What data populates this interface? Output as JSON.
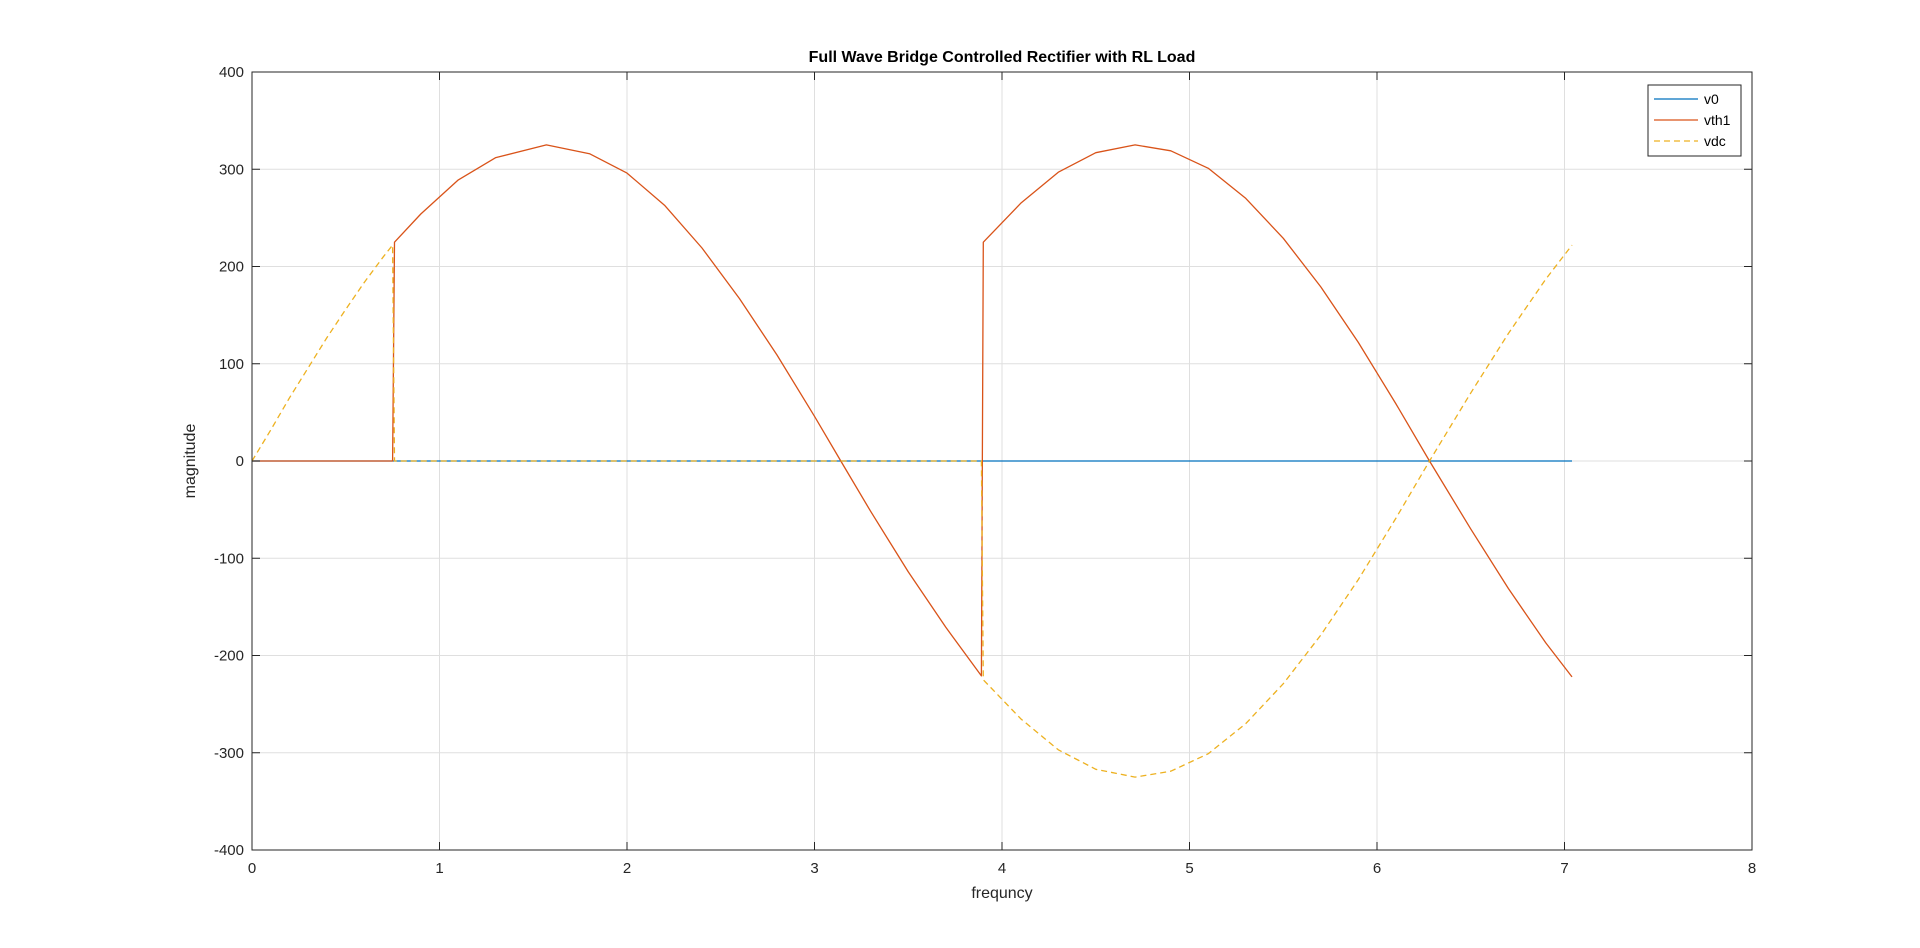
{
  "figure": {
    "background": "#ffffff"
  },
  "chart_data": {
    "type": "line",
    "title": "Full Wave Bridge Controlled Rectifier with RL Load",
    "xlabel": "frequncy",
    "ylabel": "magnitude",
    "xlim": [
      0,
      8
    ],
    "ylim": [
      -400,
      400
    ],
    "xticks": [
      0,
      1,
      2,
      3,
      4,
      5,
      6,
      7,
      8
    ],
    "yticks": [
      -400,
      -300,
      -200,
      -100,
      0,
      100,
      200,
      300,
      400
    ],
    "xtick_labels": [
      "0",
      "1",
      "2",
      "3",
      "4",
      "5",
      "6",
      "7",
      "8"
    ],
    "ytick_labels": [
      "-400",
      "-300",
      "-200",
      "-100",
      "0",
      "100",
      "200",
      "300",
      "400"
    ],
    "grid": true,
    "legend": {
      "placement": "top-right",
      "entries": [
        "v0",
        "vth1",
        "vdc"
      ]
    },
    "series": [
      {
        "name": "v0",
        "color": "#0072bd",
        "style": "solid",
        "x": [
          0,
          0.75,
          0.76,
          3.9,
          7.04
        ],
        "y": [
          0,
          0,
          0,
          0,
          0
        ]
      },
      {
        "name": "vth1",
        "color": "#d95319",
        "style": "solid",
        "x": [
          0,
          0.75,
          0.76,
          0.9,
          1.1,
          1.3,
          1.57,
          1.8,
          2.0,
          2.2,
          2.4,
          2.6,
          2.8,
          3.0,
          3.14,
          3.3,
          3.5,
          3.7,
          3.89,
          3.9,
          4.1,
          4.3,
          4.5,
          4.71,
          4.9,
          5.1,
          5.3,
          5.5,
          5.7,
          5.9,
          6.1,
          6.28,
          6.5,
          6.7,
          6.9,
          7.04
        ],
        "y": [
          0,
          0,
          225,
          254,
          289,
          312,
          325,
          316,
          296,
          263,
          219,
          167,
          109,
          46,
          0,
          -52,
          -114,
          -171,
          -221,
          225,
          265,
          297,
          317,
          325,
          319,
          301,
          270,
          229,
          179,
          122,
          59,
          0,
          -70,
          -131,
          -187,
          -222
        ]
      },
      {
        "name": "vdc",
        "color": "#edb120",
        "style": "dashed",
        "x": [
          0,
          0.1,
          0.2,
          0.3,
          0.4,
          0.5,
          0.6,
          0.7,
          0.75,
          0.76,
          3.89,
          3.9,
          4.1,
          4.3,
          4.5,
          4.71,
          4.9,
          5.1,
          5.3,
          5.5,
          5.7,
          5.9,
          6.1,
          6.28,
          6.5,
          6.7,
          6.9,
          7.04
        ],
        "y": [
          0,
          32,
          65,
          96,
          127,
          156,
          184,
          210,
          222,
          0,
          0,
          -225,
          -265,
          -297,
          -317,
          -325,
          -319,
          -301,
          -270,
          -229,
          -179,
          -122,
          -59,
          0,
          70,
          131,
          187,
          222
        ]
      }
    ]
  }
}
